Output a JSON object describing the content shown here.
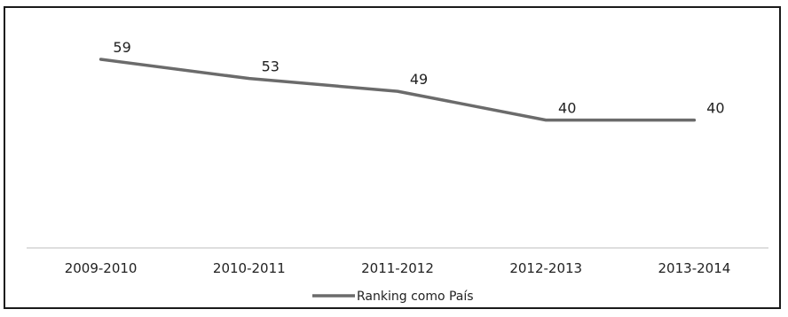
{
  "chart_data": {
    "type": "line",
    "categories": [
      "2009-2010",
      "2010-2011",
      "2011-2012",
      "2012-2013",
      "2013-2014"
    ],
    "series": [
      {
        "name": "Ranking como País",
        "values": [
          59,
          53,
          49,
          40,
          40
        ]
      }
    ],
    "title": "",
    "xlabel": "",
    "ylabel": "",
    "ylim": [
      0,
      70
    ],
    "grid": false,
    "legend": "bottom",
    "line_color": "#6b6b6b"
  }
}
